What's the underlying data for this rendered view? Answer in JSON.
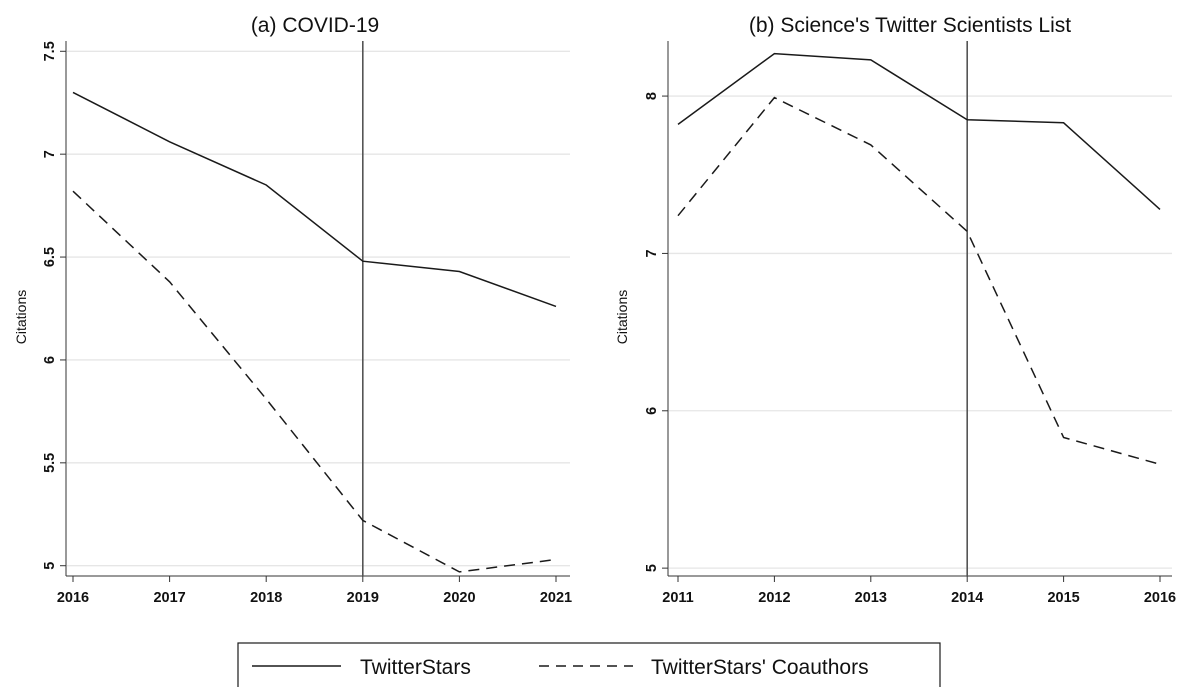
{
  "chart_data": [
    {
      "type": "line",
      "title": "(a) COVID-19",
      "xlabel": "",
      "ylabel": "Citations",
      "x": [
        2016,
        2017,
        2018,
        2019,
        2020,
        2021
      ],
      "xticks": [
        "2016",
        "2017",
        "2018",
        "2019",
        "2020",
        "2021"
      ],
      "yticks": [
        "5",
        "5.5",
        "6",
        "6.5",
        "7",
        "7.5"
      ],
      "ylim": [
        4.95,
        7.55
      ],
      "grid": true,
      "vline": 2019,
      "series": [
        {
          "name": "TwitterStars",
          "style": "solid",
          "values": [
            7.3,
            7.06,
            6.85,
            6.48,
            6.43,
            6.26
          ]
        },
        {
          "name": "TwitterStars' Coauthors",
          "style": "dashed",
          "values": [
            6.82,
            6.38,
            5.81,
            5.22,
            4.97,
            5.03
          ]
        }
      ]
    },
    {
      "type": "line",
      "title": "(b) Science's Twitter Scientists List",
      "xlabel": "",
      "ylabel": "Citations",
      "x": [
        2011,
        2012,
        2013,
        2014,
        2015,
        2016
      ],
      "xticks": [
        "2011",
        "2012",
        "2013",
        "2014",
        "2015",
        "2016"
      ],
      "yticks": [
        "5",
        "6",
        "7",
        "8"
      ],
      "ylim": [
        4.95,
        8.35
      ],
      "grid": true,
      "vline": 2014,
      "series": [
        {
          "name": "TwitterStars",
          "style": "solid",
          "values": [
            7.82,
            8.27,
            8.23,
            7.85,
            7.83,
            7.28
          ]
        },
        {
          "name": "TwitterStars' Coauthors",
          "style": "dashed",
          "values": [
            7.24,
            7.99,
            7.69,
            7.14,
            5.83,
            5.66
          ]
        }
      ]
    }
  ],
  "legend": {
    "position": "bottom-center",
    "items": [
      {
        "label": "TwitterStars",
        "style": "solid"
      },
      {
        "label": "TwitterStars' Coauthors",
        "style": "dashed"
      }
    ]
  },
  "colors": {
    "line": "#1a1a1a",
    "grid": "#e6e6e6",
    "vline": "#555555",
    "axis": "#333333"
  }
}
